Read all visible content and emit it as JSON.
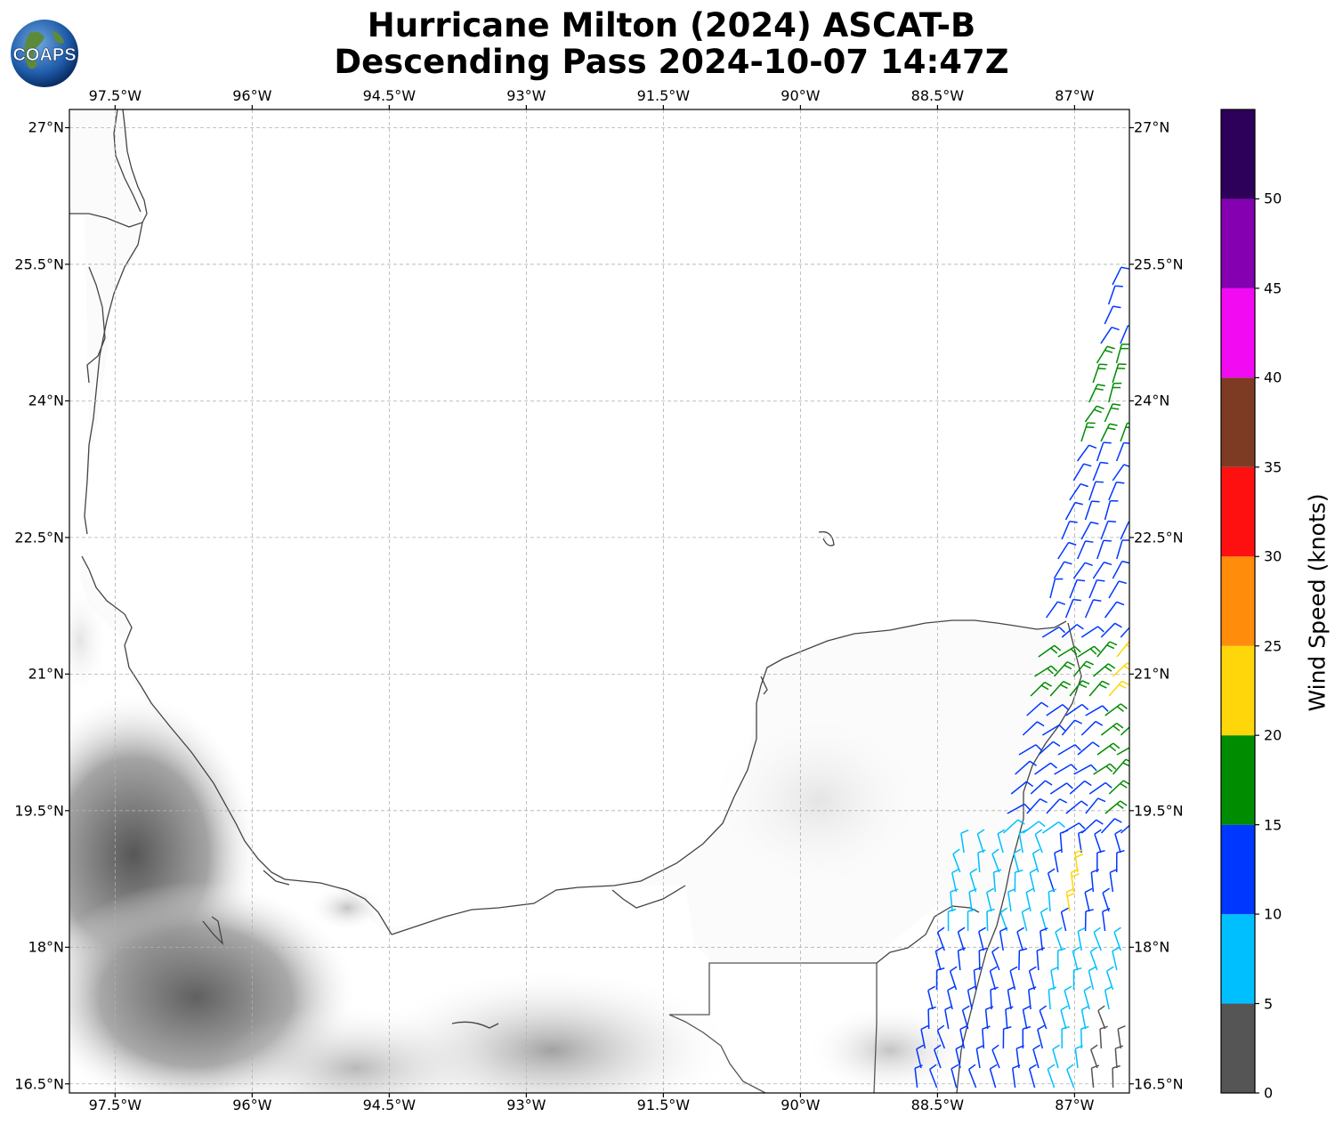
{
  "title": {
    "line1": "Hurricane Milton (2024) ASCAT-B",
    "line2": "Descending Pass 2024-10-07 14:47Z"
  },
  "logo": {
    "text": "COAPS",
    "icon": "globe-logo-icon"
  },
  "map": {
    "lon_ticks": [
      {
        "lon": -97.5,
        "label": "97.5°W"
      },
      {
        "lon": -96,
        "label": "96°W"
      },
      {
        "lon": -94.5,
        "label": "94.5°W"
      },
      {
        "lon": -93,
        "label": "93°W"
      },
      {
        "lon": -91.5,
        "label": "91.5°W"
      },
      {
        "lon": -90,
        "label": "90°W"
      },
      {
        "lon": -88.5,
        "label": "88.5°W"
      },
      {
        "lon": -87,
        "label": "87°W"
      }
    ],
    "lat_ticks": [
      {
        "lat": 27,
        "label": "27°N"
      },
      {
        "lat": 25.5,
        "label": "25.5°N"
      },
      {
        "lat": 24,
        "label": "24°N"
      },
      {
        "lat": 22.5,
        "label": "22.5°N"
      },
      {
        "lat": 21,
        "label": "21°N"
      },
      {
        "lat": 19.5,
        "label": "19.5°N"
      },
      {
        "lat": 18,
        "label": "18°N"
      },
      {
        "lat": 16.5,
        "label": "16.5°N"
      }
    ],
    "extent": {
      "lon_min": -98.0,
      "lon_max": -86.4,
      "lat_min": 16.4,
      "lat_max": 27.2
    },
    "gridlines": true,
    "coastline_color": "#444444"
  },
  "colorbar": {
    "title": "Wind Speed (knots)",
    "bounds": [
      0,
      5,
      10,
      15,
      20,
      25,
      30,
      35,
      40,
      45,
      50,
      55
    ],
    "tick_labels": [
      "0",
      "5",
      "10",
      "15",
      "20",
      "25",
      "30",
      "35",
      "40",
      "45",
      "50"
    ],
    "colors": [
      "#555555",
      "#00bfff",
      "#0037ff",
      "#008c00",
      "#ffd60a",
      "#ff8c0a",
      "#ff1010",
      "#7d3b24",
      "#f20af2",
      "#8400b0",
      "#2d0059"
    ]
  },
  "wind_swath": {
    "description_levels_knots": [
      5,
      10,
      15,
      20,
      25
    ]
  }
}
